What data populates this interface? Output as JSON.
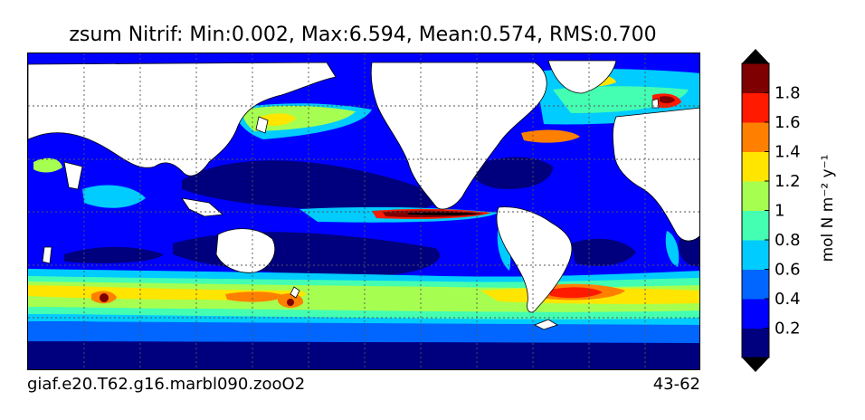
{
  "chart_data": {
    "type": "heatmap",
    "title": "zsum Nitrif: Min:0.002, Max:6.594, Mean:0.574, RMS:0.700",
    "footer_left": "giaf.e20.T62.g16.marbl090.zooO2",
    "footer_right": "43-62",
    "colorbar": {
      "label": "mol N m⁻² y⁻¹",
      "ticks": [
        "0.2",
        "0.4",
        "0.6",
        "0.8",
        "1",
        "1.2",
        "1.4",
        "1.6",
        "1.8"
      ],
      "tick_values": [
        0.2,
        0.4,
        0.6,
        0.8,
        1.0,
        1.2,
        1.4,
        1.6,
        1.8
      ],
      "levels": [
        0,
        0.2,
        0.4,
        0.6,
        0.8,
        1.0,
        1.2,
        1.4,
        1.6,
        1.8,
        2.0
      ],
      "colors": [
        "#00007f",
        "#0000ff",
        "#0066ff",
        "#00ccff",
        "#44ffb2",
        "#a6ff50",
        "#ffe500",
        "#ff8000",
        "#ff1a00",
        "#7f0000"
      ],
      "extend": "both"
    },
    "min": 0.002,
    "max": 6.594,
    "mean": 0.574,
    "rms": 0.7,
    "grid": true
  }
}
